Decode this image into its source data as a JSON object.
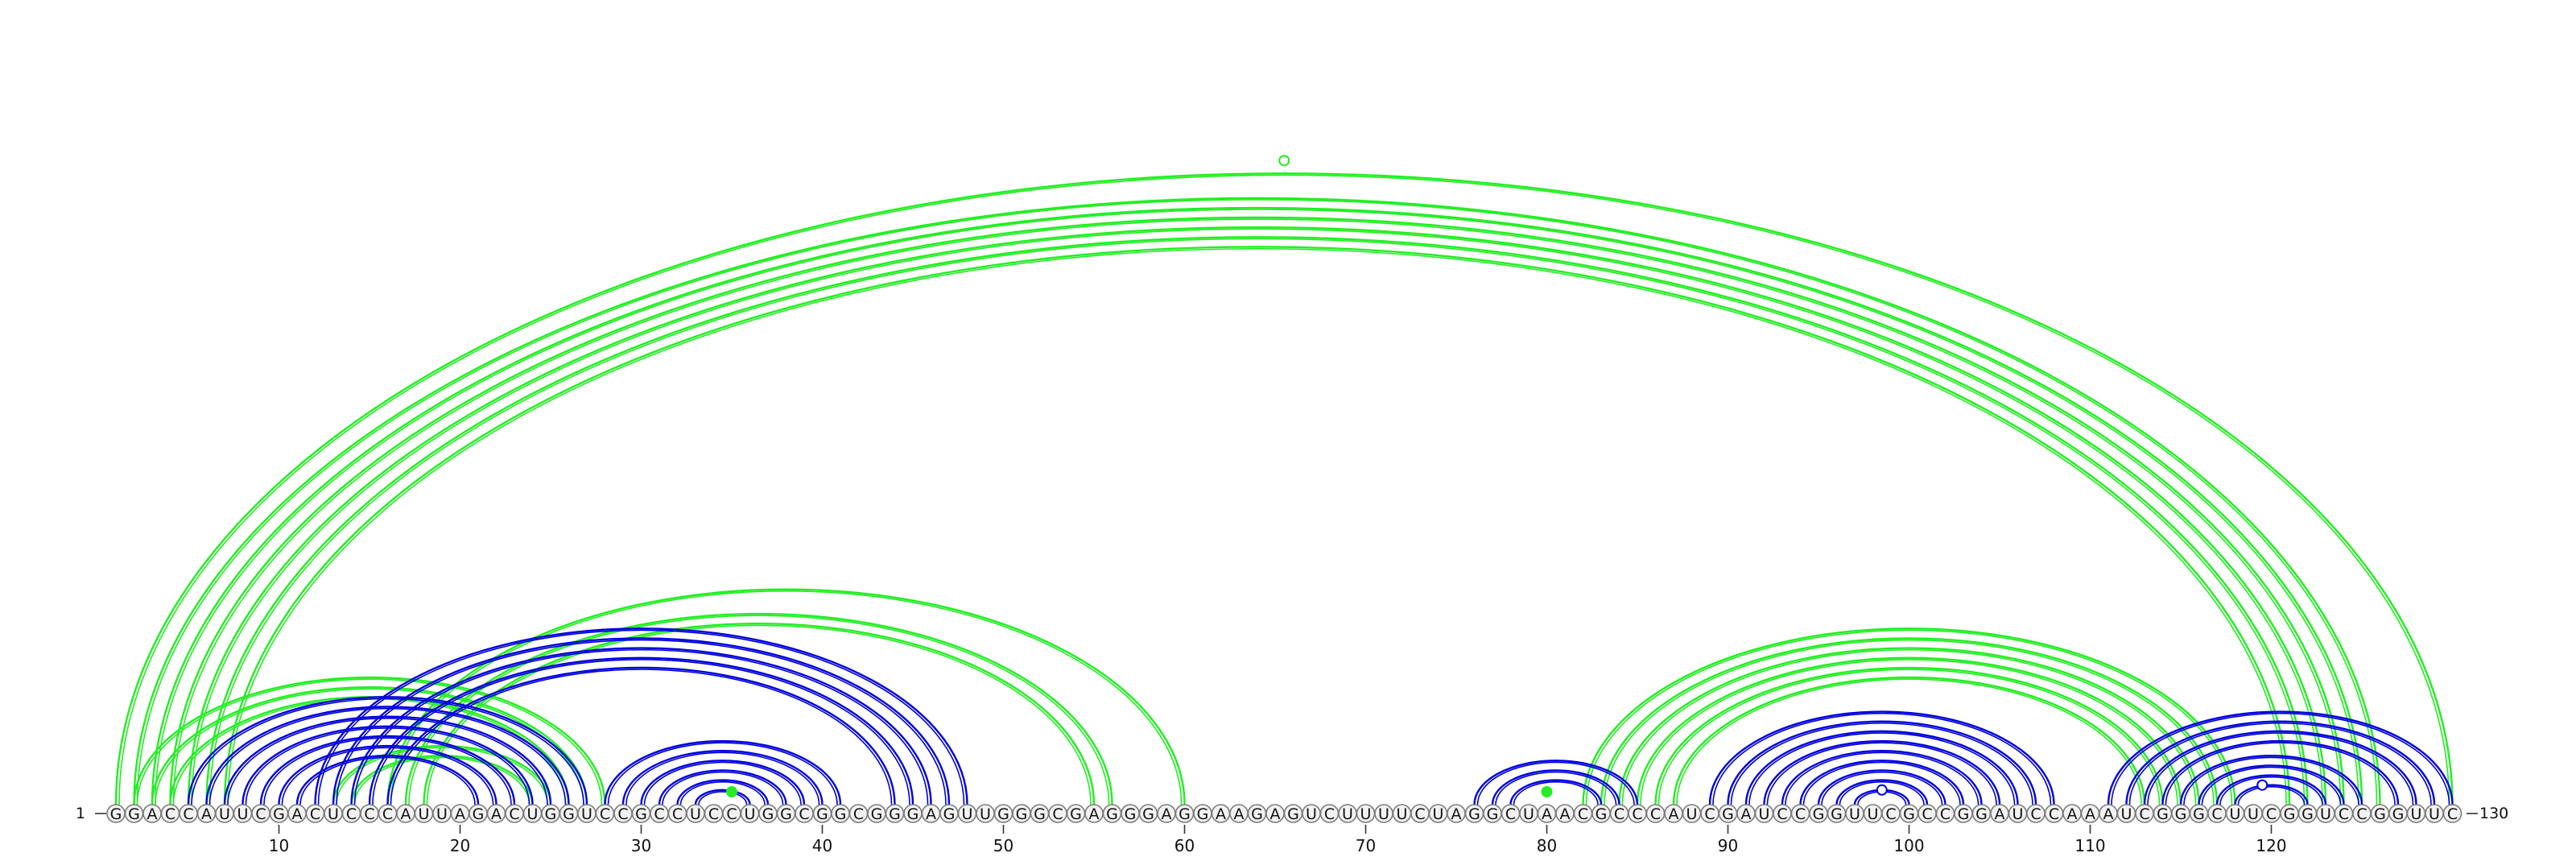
{
  "sequence": {
    "letters": "GGACCAUUCGACUCCCAUUAGACUGGUCCGCCUCCUGGCGGCGGGAGUUGGGCGAGGGAGGAAGAGUCUUUUCUAGGCUAACGCCCAUCGAUCCGGUUCGCCGGAUCCAAAUCGGGCUUCGGUCCGGUUC",
    "start_label": "1",
    "end_label": "130",
    "ticks": [
      10,
      20,
      30,
      40,
      50,
      60,
      70,
      80,
      90,
      100,
      110,
      120
    ]
  },
  "colors": {
    "green": "#22ee22",
    "blue": "#0000dd"
  },
  "arcs_green": [
    [
      1,
      130
    ],
    [
      2,
      126
    ],
    [
      3,
      125
    ],
    [
      4,
      124
    ],
    [
      5,
      123
    ],
    [
      6,
      122
    ],
    [
      7,
      121
    ],
    [
      2,
      28
    ],
    [
      3,
      27
    ],
    [
      4,
      26
    ],
    [
      13,
      25
    ],
    [
      14,
      24
    ],
    [
      16,
      60
    ],
    [
      17,
      56
    ],
    [
      18,
      55
    ],
    [
      82,
      118
    ],
    [
      83,
      117
    ],
    [
      84,
      116
    ],
    [
      85,
      115
    ],
    [
      86,
      114
    ],
    [
      87,
      113
    ],
    [
      35,
      35
    ],
    [
      80,
      80
    ]
  ],
  "arcs_blue": [
    [
      5,
      27
    ],
    [
      6,
      26
    ],
    [
      7,
      25
    ],
    [
      8,
      24
    ],
    [
      9,
      23
    ],
    [
      10,
      22
    ],
    [
      11,
      21
    ],
    [
      12,
      48
    ],
    [
      13,
      47
    ],
    [
      14,
      46
    ],
    [
      15,
      45
    ],
    [
      16,
      44
    ],
    [
      28,
      41
    ],
    [
      29,
      40
    ],
    [
      30,
      39
    ],
    [
      31,
      38
    ],
    [
      32,
      37
    ],
    [
      33,
      36
    ],
    [
      76,
      85
    ],
    [
      77,
      84
    ],
    [
      78,
      83
    ],
    [
      89,
      108
    ],
    [
      90,
      107
    ],
    [
      91,
      106
    ],
    [
      92,
      105
    ],
    [
      93,
      104
    ],
    [
      94,
      103
    ],
    [
      95,
      102
    ],
    [
      96,
      101
    ],
    [
      97,
      100
    ],
    [
      111,
      130
    ],
    [
      112,
      129
    ],
    [
      113,
      128
    ],
    [
      114,
      127
    ],
    [
      115,
      125
    ],
    [
      116,
      124
    ],
    [
      117,
      123
    ],
    [
      118,
      122
    ]
  ],
  "markers": [
    {
      "pos": 35,
      "color": "green",
      "filled": true
    },
    {
      "pos": 80,
      "color": "green",
      "filled": true
    },
    {
      "pos": 98.5,
      "color": "blue",
      "filled": false
    },
    {
      "pos": 119.5,
      "color": "blue",
      "filled": false
    },
    {
      "pos": 65.5,
      "color": "green",
      "filled": false
    }
  ]
}
